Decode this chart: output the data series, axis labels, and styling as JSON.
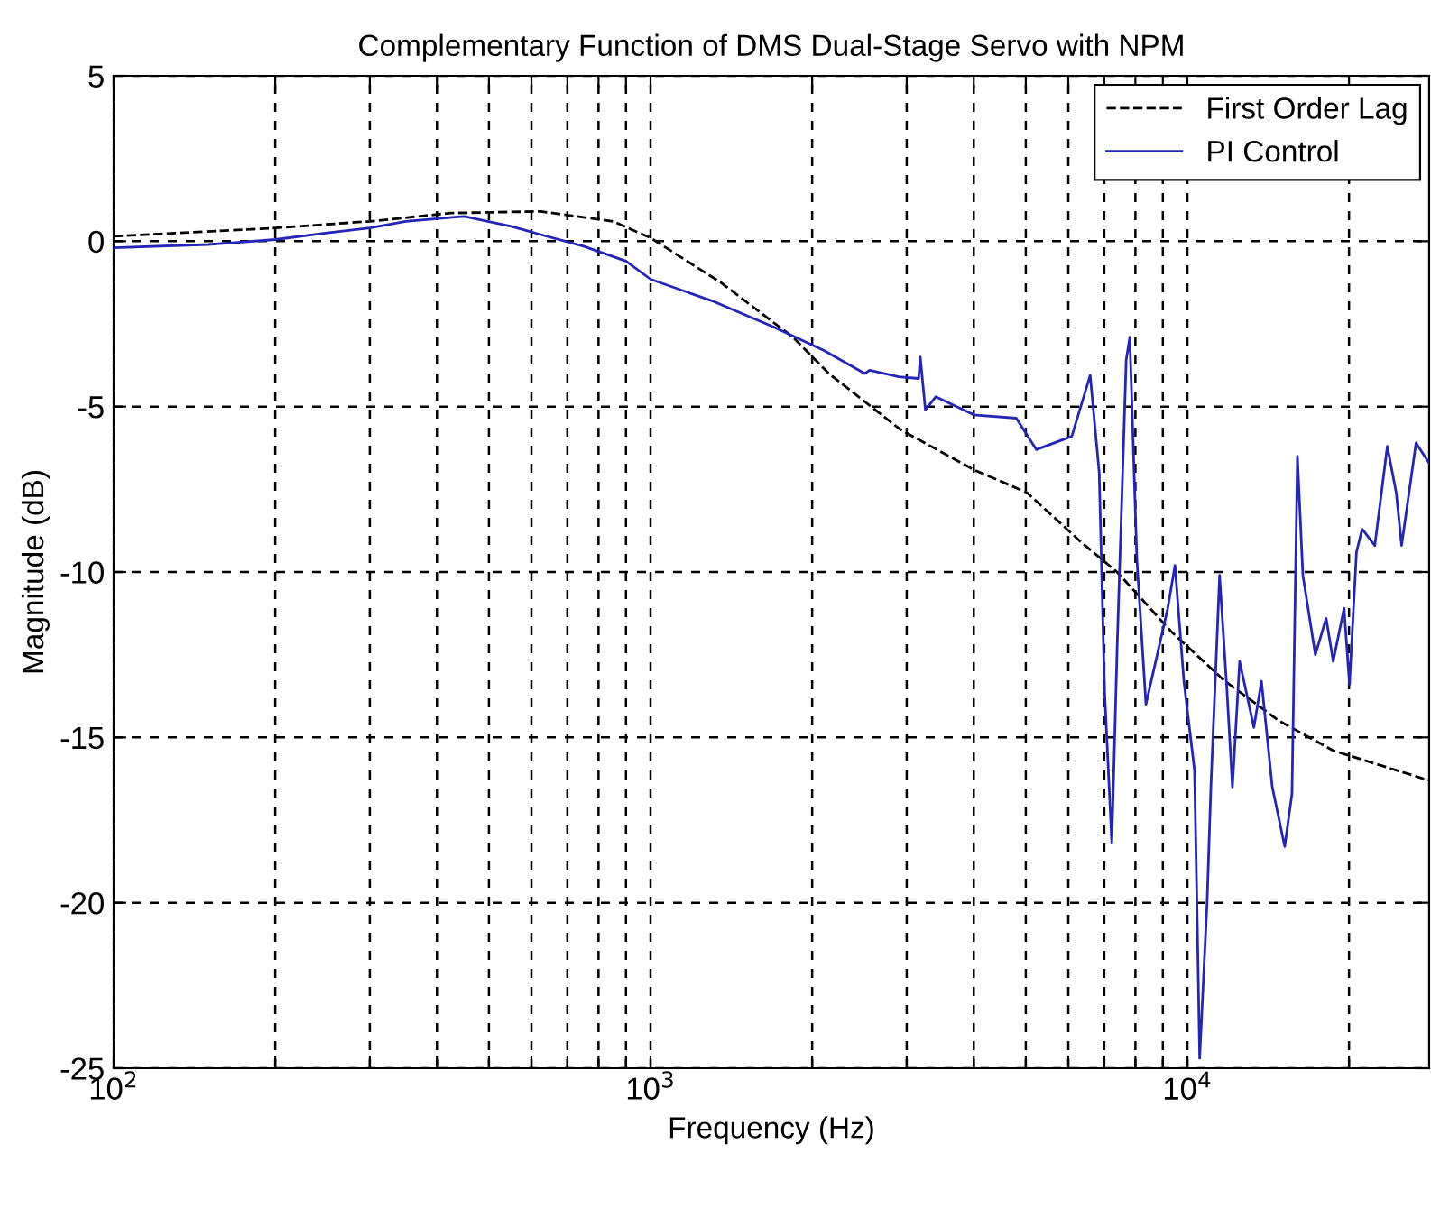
{
  "chart_data": {
    "type": "line",
    "title": "Complementary Function of DMS Dual-Stage Servo with NPM",
    "xlabel": "Frequency (Hz)",
    "ylabel": "Magnitude (dB)",
    "log": "x",
    "grid": true,
    "legend": "top right",
    "xlim": [
      100,
      28200
    ],
    "ylim": [
      -25,
      5
    ],
    "xticks": [
      {
        "value": 100,
        "label": "10$^{2}$"
      },
      {
        "value": 200,
        "label": null
      },
      {
        "value": 300,
        "label": null
      },
      {
        "value": 400,
        "label": null
      },
      {
        "value": 500,
        "label": null
      },
      {
        "value": 600,
        "label": null
      },
      {
        "value": 700,
        "label": null
      },
      {
        "value": 800,
        "label": null
      },
      {
        "value": 900,
        "label": null
      },
      {
        "value": 1000,
        "label": "10$^{3}$"
      },
      {
        "value": 2000,
        "label": null
      },
      {
        "value": 3000,
        "label": null
      },
      {
        "value": 4000,
        "label": null
      },
      {
        "value": 5000,
        "label": null
      },
      {
        "value": 6000,
        "label": null
      },
      {
        "value": 7000,
        "label": null
      },
      {
        "value": 8000,
        "label": null
      },
      {
        "value": 9000,
        "label": null
      },
      {
        "value": 10000,
        "label": "10$^{4}$"
      },
      {
        "value": 20000,
        "label": null
      }
    ],
    "yticks": [
      -25,
      -20,
      -15,
      -10,
      -5,
      0,
      5
    ],
    "series": [
      {
        "name": "First Order Lag",
        "color": "#000000",
        "line_style": "dashed",
        "x": [
          100,
          200,
          300,
          424,
          624,
          851,
          1000,
          1352,
          1841,
          2148,
          2924,
          3990,
          5025,
          6340,
          7395,
          9330,
          11750,
          14820,
          18700,
          28180
        ],
        "values": [
          0.15,
          0.4,
          0.6,
          0.85,
          0.9,
          0.6,
          0.1,
          -1.25,
          -2.9,
          -4.0,
          -5.7,
          -6.9,
          -7.6,
          -9.1,
          -10.0,
          -11.8,
          -13.3,
          -14.5,
          -15.4,
          -16.3
        ]
      },
      {
        "name": "PI Control",
        "color": "#2424b8",
        "line_style": "solid",
        "x": [
          100,
          150,
          200,
          250,
          300,
          350,
          450,
          550,
          624,
          750,
          900,
          1000,
          1300,
          1700,
          2100,
          2506,
          2560,
          2900,
          3157,
          3180,
          3250,
          3400,
          4000,
          4800,
          5230,
          6090,
          6590,
          6850,
          7010,
          7230,
          7400,
          7690,
          7810,
          8050,
          8370,
          9190,
          9480,
          9850,
          10310,
          10540,
          10880,
          11060,
          11480,
          11850,
          12130,
          12510,
          13300,
          13740,
          14390,
          15180,
          15660,
          16030,
          16410,
          17310,
          18130,
          18690,
          19580,
          20040,
          20650,
          21160,
          22340,
          23570,
          24490,
          25060,
          26660,
          28180
        ],
        "values": [
          -0.2,
          -0.1,
          0.05,
          0.25,
          0.4,
          0.6,
          0.75,
          0.45,
          0.2,
          -0.15,
          -0.6,
          -1.15,
          -1.8,
          -2.6,
          -3.3,
          -4.0,
          -3.9,
          -4.1,
          -4.15,
          -3.5,
          -5.1,
          -4.7,
          -5.25,
          -5.35,
          -6.3,
          -5.9,
          -4.05,
          -7.0,
          -13.6,
          -18.2,
          -12.2,
          -3.6,
          -2.9,
          -9.6,
          -14.0,
          -11.1,
          -9.8,
          -13.3,
          -16.0,
          -24.7,
          -20.0,
          -16.5,
          -10.1,
          -13.6,
          -16.5,
          -12.7,
          -14.7,
          -13.3,
          -16.5,
          -18.3,
          -16.7,
          -6.5,
          -10.1,
          -12.5,
          -11.4,
          -12.7,
          -11.1,
          -13.4,
          -9.4,
          -8.7,
          -9.2,
          -6.2,
          -7.6,
          -9.2,
          -6.1,
          -6.7
        ]
      }
    ]
  }
}
